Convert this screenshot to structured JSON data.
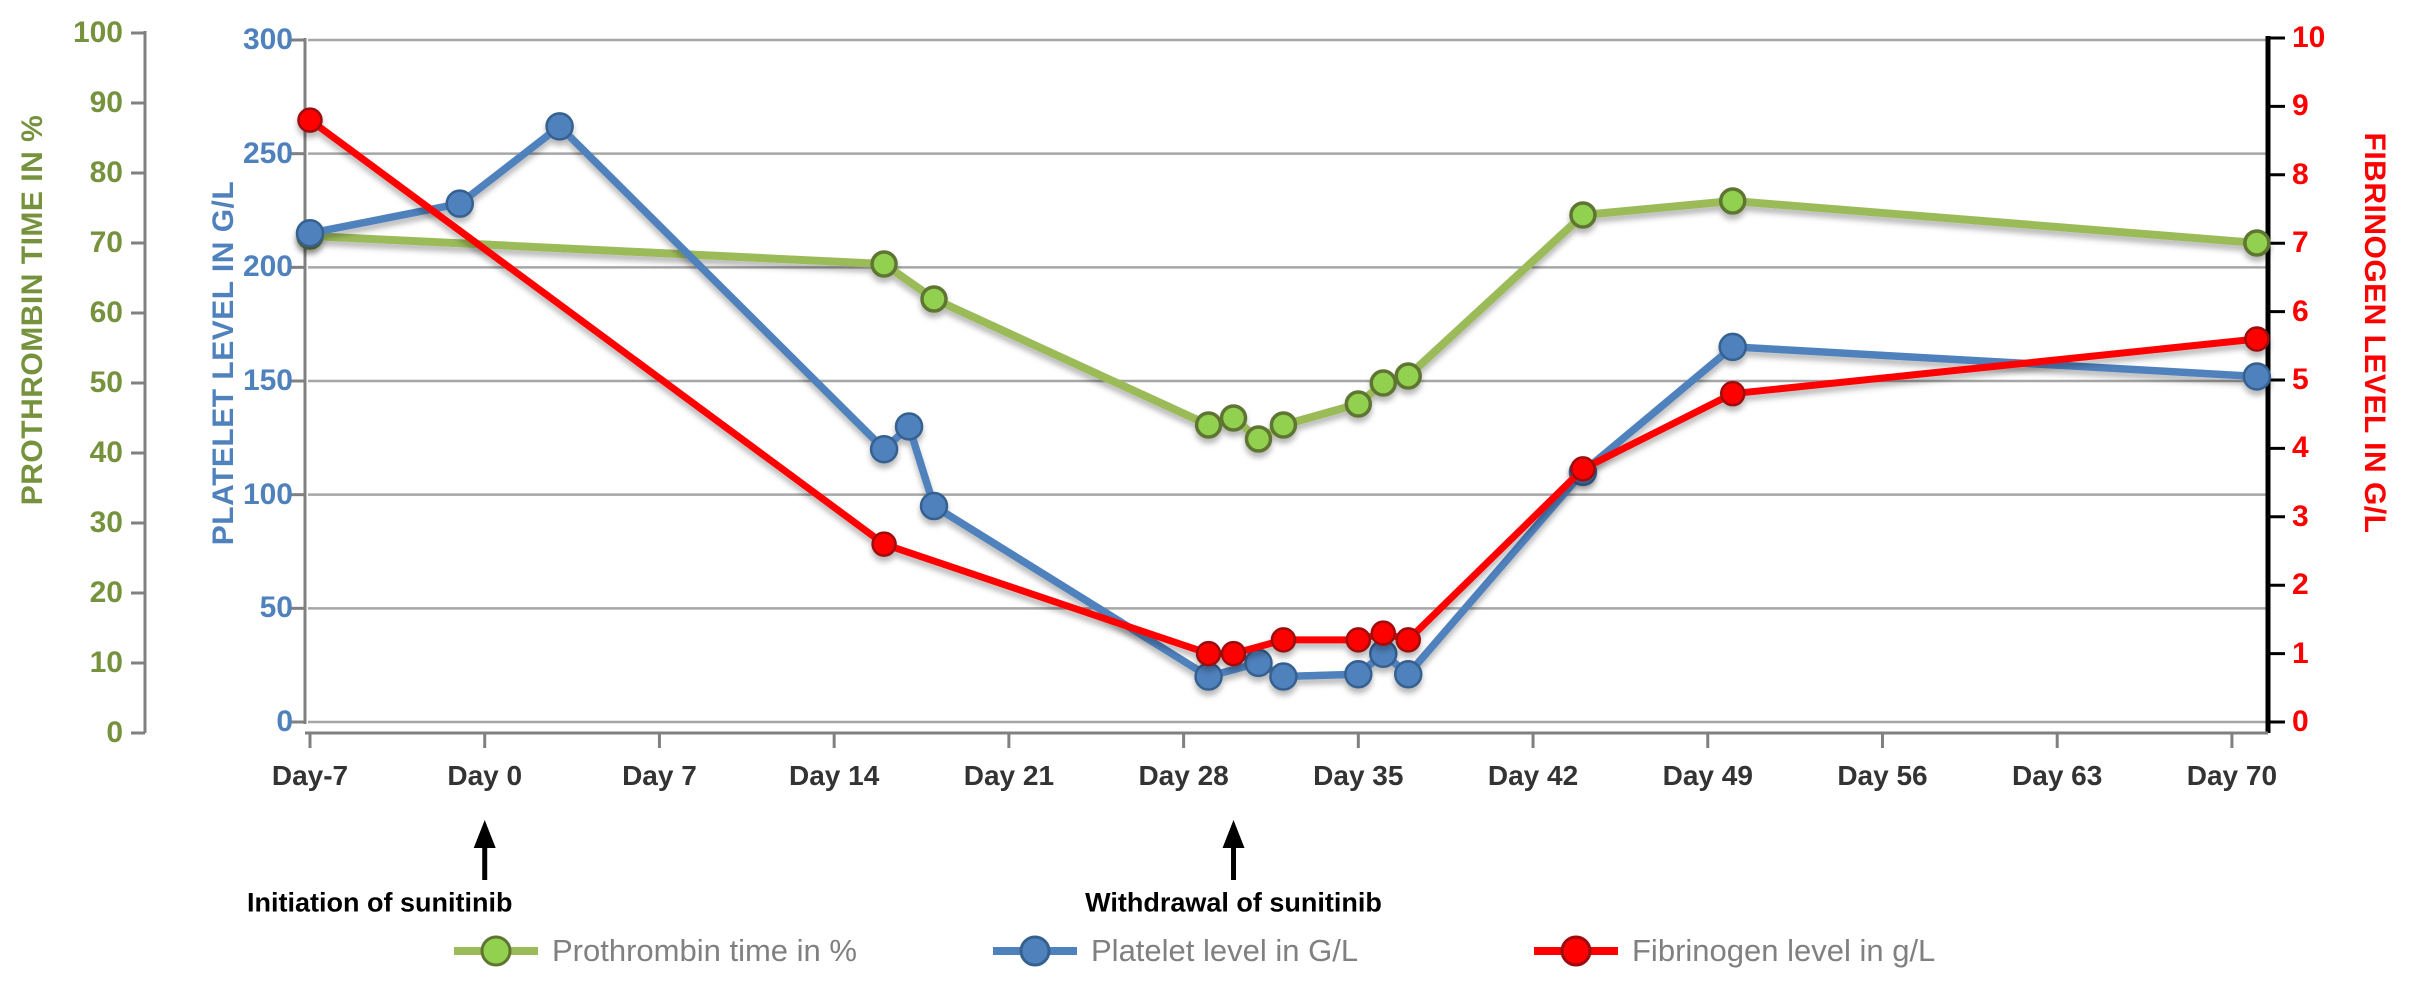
{
  "chart_data": {
    "type": "line",
    "x_axis": {
      "tick_labels": [
        "Day-7",
        "Day 0",
        "Day 7",
        "Day 14",
        "Day 21",
        "Day 28",
        "Day 35",
        "Day 42",
        "Day 49",
        "Day 56",
        "Day 63",
        "Day 70"
      ],
      "tick_days": [
        -7,
        0,
        7,
        14,
        21,
        28,
        35,
        42,
        49,
        56,
        63,
        70
      ],
      "min_day": -7,
      "max_day": 71.5
    },
    "y_axes": [
      {
        "id": "prothrombin",
        "side": "outer-left",
        "title": "PROTHROMBIN TIME IN %",
        "color": "#76923C",
        "min": 0,
        "max": 100,
        "tick_step": 10,
        "tick_labels": [
          "0",
          "10",
          "20",
          "30",
          "40",
          "50",
          "60",
          "70",
          "80",
          "90",
          "100"
        ]
      },
      {
        "id": "platelet",
        "side": "inner-left",
        "title": "PLATELET LEVEL IN G/L",
        "color": "#4F81BD",
        "min": 0,
        "max": 300,
        "tick_step": 50,
        "tick_labels": [
          "0",
          "50",
          "100",
          "150",
          "200",
          "250",
          "300"
        ]
      },
      {
        "id": "fibrinogen",
        "side": "right",
        "title": "FIBRINOGEN LEVEL IN G/L",
        "color": "#FF0000",
        "min": 0,
        "max": 10,
        "tick_step": 1,
        "tick_labels": [
          "0",
          "1",
          "2",
          "3",
          "4",
          "5",
          "6",
          "7",
          "8",
          "9",
          "10"
        ]
      }
    ],
    "grid": {
      "horizontal_lines_at_platelet_values": [
        0,
        50,
        100,
        150,
        200,
        250,
        300
      ],
      "color": "#A6A6A6"
    },
    "series": [
      {
        "name": "Prothrombin time  in %",
        "axis": "prothrombin",
        "line_color": "#9BBB59",
        "marker_fill": "#92D050",
        "marker_border": "#5F7530",
        "points": [
          {
            "day": -7,
            "value": 71
          },
          {
            "day": 16,
            "value": 67
          },
          {
            "day": 18,
            "value": 62
          },
          {
            "day": 29,
            "value": 44
          },
          {
            "day": 30,
            "value": 45
          },
          {
            "day": 31,
            "value": 42
          },
          {
            "day": 32,
            "value": 44
          },
          {
            "day": 35,
            "value": 47
          },
          {
            "day": 36,
            "value": 50
          },
          {
            "day": 37,
            "value": 51
          },
          {
            "day": 44,
            "value": 74
          },
          {
            "day": 50,
            "value": 76
          },
          {
            "day": 71,
            "value": 70
          }
        ]
      },
      {
        "name": "Platelet level in G/L",
        "axis": "platelet",
        "line_color": "#4F81BD",
        "marker_fill": "#4F81BD",
        "marker_border": "#35618F",
        "points": [
          {
            "day": -7,
            "value": 215
          },
          {
            "day": -1,
            "value": 228
          },
          {
            "day": 3,
            "value": 262
          },
          {
            "day": 16,
            "value": 120
          },
          {
            "day": 17,
            "value": 130
          },
          {
            "day": 18,
            "value": 95
          },
          {
            "day": 29,
            "value": 20
          },
          {
            "day": 31,
            "value": 26
          },
          {
            "day": 32,
            "value": 20
          },
          {
            "day": 35,
            "value": 21
          },
          {
            "day": 36,
            "value": 30
          },
          {
            "day": 37,
            "value": 21
          },
          {
            "day": 44,
            "value": 110
          },
          {
            "day": 50,
            "value": 165
          },
          {
            "day": 71,
            "value": 152
          }
        ]
      },
      {
        "name": "Fibrinogen level in g/L",
        "axis": "fibrinogen",
        "line_color": "#FF0000",
        "marker_fill": "#FF0000",
        "marker_border": "#9E0B0F",
        "points": [
          {
            "day": -7,
            "value": 8.8
          },
          {
            "day": 16,
            "value": 2.6
          },
          {
            "day": 29,
            "value": 1.0
          },
          {
            "day": 30,
            "value": 1.0
          },
          {
            "day": 32,
            "value": 1.2
          },
          {
            "day": 35,
            "value": 1.2
          },
          {
            "day": 36,
            "value": 1.3
          },
          {
            "day": 37,
            "value": 1.2
          },
          {
            "day": 44,
            "value": 3.7
          },
          {
            "day": 50,
            "value": 4.8
          },
          {
            "day": 71,
            "value": 5.6
          }
        ]
      }
    ],
    "annotations": [
      {
        "label": "Initiation of sunitinib",
        "day": 0
      },
      {
        "label": "Withdrawal of sunitinib",
        "day": 30
      }
    ],
    "legend": {
      "position": "bottom",
      "entries": [
        "Prothrombin time  in %",
        "Platelet level in G/L",
        "Fibrinogen level in g/L"
      ],
      "text_color": "#808080"
    }
  }
}
